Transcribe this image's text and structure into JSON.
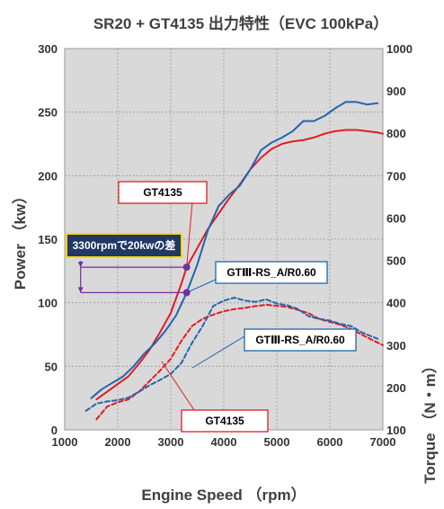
{
  "chart_data": {
    "type": "line",
    "title": "SR20 + GT4135 出力特性（EVC 100kPa）",
    "xlabel": "Engine Speed （rpm）",
    "ylabel": "Power （kw）",
    "y2label": "Torque （N・m）",
    "xlim": [
      1000,
      7000
    ],
    "ylim": [
      0,
      300
    ],
    "y2lim": [
      100,
      1000
    ],
    "x_ticks": [
      "1000",
      "2000",
      "3000",
      "4000",
      "5000",
      "6000",
      "7000"
    ],
    "y_ticks": [
      "0",
      "50",
      "100",
      "150",
      "200",
      "250",
      "300"
    ],
    "y2_ticks": [
      "100",
      "200",
      "300",
      "400",
      "500",
      "600",
      "700",
      "800",
      "900",
      "1000"
    ],
    "grid": true,
    "colors": {
      "red": "#e31b23",
      "blue": "#2066b0",
      "grid": "#999999",
      "plot_bg": "#d9d9d9",
      "marker": "#7030a0"
    },
    "series": [
      {
        "key": "power_gt4135",
        "axis": "left",
        "style": "solid",
        "color": "#e31b23",
        "x": [
          1600,
          1800,
          2000,
          2200,
          2400,
          2600,
          2800,
          3000,
          3200,
          3300,
          3500,
          3700,
          3900,
          4100,
          4300,
          4500,
          4700,
          4900,
          5100,
          5300,
          5500,
          5700,
          5900,
          6100,
          6300,
          6500,
          6700,
          6900,
          7000
        ],
        "y": [
          24,
          30,
          36,
          42,
          52,
          63,
          77,
          92,
          115,
          128,
          143,
          158,
          170,
          182,
          193,
          205,
          214,
          221,
          225,
          227,
          228,
          230,
          233,
          235,
          236,
          236,
          235,
          234,
          233
        ]
      },
      {
        "key": "power_gtiii",
        "axis": "left",
        "style": "solid",
        "color": "#2066b0",
        "x": [
          1500,
          1700,
          1900,
          2100,
          2300,
          2500,
          2700,
          2900,
          3100,
          3300,
          3500,
          3700,
          3900,
          4100,
          4300,
          4500,
          4700,
          4900,
          5100,
          5300,
          5500,
          5700,
          5900,
          6100,
          6300,
          6500,
          6700,
          6900
        ],
        "y": [
          25,
          32,
          37,
          42,
          50,
          60,
          68,
          78,
          90,
          108,
          130,
          157,
          176,
          185,
          192,
          205,
          220,
          226,
          230,
          235,
          243,
          243,
          247,
          253,
          258,
          258,
          256,
          257
        ]
      },
      {
        "key": "torque_gt4135",
        "axis": "right",
        "style": "dashed",
        "color": "#e31b23",
        "x": [
          1600,
          1800,
          2000,
          2200,
          2400,
          2600,
          2800,
          3000,
          3200,
          3400,
          3600,
          3800,
          4000,
          4200,
          4400,
          4600,
          4800,
          5000,
          5200,
          5400,
          5600,
          5800,
          6000,
          6200,
          6400,
          6600,
          6800,
          7000
        ],
        "y": [
          125,
          155,
          165,
          172,
          190,
          215,
          240,
          268,
          310,
          345,
          362,
          372,
          380,
          385,
          388,
          392,
          395,
          393,
          390,
          383,
          375,
          362,
          355,
          348,
          338,
          325,
          312,
          300
        ]
      },
      {
        "key": "torque_gtiii",
        "axis": "right",
        "style": "dashed",
        "color": "#2066b0",
        "x": [
          1400,
          1600,
          1800,
          2000,
          2200,
          2400,
          2600,
          2800,
          3000,
          3200,
          3400,
          3600,
          3800,
          4000,
          4200,
          4400,
          4600,
          4800,
          5000,
          5200,
          5400,
          5600,
          5800,
          6000,
          6200,
          6400,
          6600,
          6800,
          6900
        ],
        "y": [
          145,
          162,
          167,
          170,
          176,
          190,
          205,
          218,
          232,
          258,
          305,
          345,
          392,
          405,
          412,
          405,
          402,
          408,
          398,
          394,
          385,
          368,
          362,
          358,
          350,
          345,
          330,
          320,
          315
        ]
      }
    ],
    "annotations": {
      "diff_label": "3300rpmで20kwの差",
      "gt4135_power_label": "GT4135",
      "gtiii_power_label": "GTⅢ-RS_A/R0.60",
      "gtiii_torque_label": "GTⅢ-RS_A/R0.60",
      "gt4135_torque_label": "GT4135"
    },
    "markers": [
      {
        "x": 3300,
        "y": 128
      },
      {
        "x": 3300,
        "y": 108
      }
    ]
  }
}
